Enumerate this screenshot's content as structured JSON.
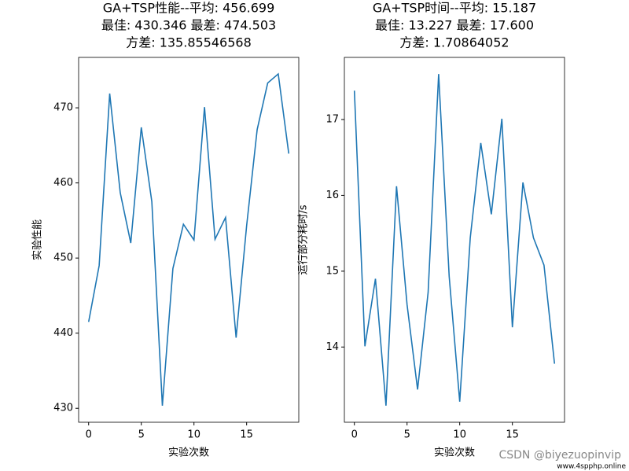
{
  "chart_data": [
    {
      "type": "line",
      "title": [
        "GA+TSP性能--平均: 456.699",
        "最佳: 430.346 最差: 474.503",
        "方差: 135.85546568"
      ],
      "x_label": "实验次数",
      "y_label": "实验性能",
      "x": [
        0,
        1,
        2,
        3,
        4,
        5,
        6,
        7,
        8,
        9,
        10,
        11,
        12,
        13,
        14,
        15,
        16,
        17,
        18,
        19
      ],
      "series": [
        {
          "color": "#1f77b4",
          "values": [
            441.5,
            449.0,
            471.9,
            458.7,
            452.0,
            467.4,
            457.5,
            430.346,
            448.6,
            454.5,
            452.4,
            470.1,
            452.5,
            455.4,
            439.4,
            454.3,
            467.1,
            473.3,
            474.503,
            463.9
          ]
        }
      ],
      "xlim": [
        -0.95,
        19.95
      ],
      "xticks": [
        0,
        5,
        10,
        15
      ],
      "ylim": [
        428.14,
        476.71
      ],
      "yticks": [
        430,
        440,
        450,
        460,
        470
      ]
    },
    {
      "type": "line",
      "title": [
        "GA+TSP时间--平均: 15.187",
        "最佳: 13.227 最差: 17.600",
        "方差: 1.70864052"
      ],
      "x_label": "实验次数",
      "y_label": "运行部分耗时/s",
      "x": [
        0,
        1,
        2,
        3,
        4,
        5,
        6,
        7,
        8,
        9,
        10,
        11,
        12,
        13,
        14,
        15,
        16,
        17,
        18,
        19
      ],
      "series": [
        {
          "color": "#1f77b4",
          "values": [
            17.38,
            14.01,
            14.9,
            13.227,
            16.12,
            14.56,
            13.44,
            14.72,
            17.6,
            14.93,
            13.28,
            15.44,
            16.69,
            15.75,
            17.01,
            14.26,
            16.17,
            15.44,
            15.08,
            13.78
          ]
        }
      ],
      "xlim": [
        -0.95,
        19.95
      ],
      "xticks": [
        0,
        5,
        10,
        15
      ],
      "ylim": [
        13.008,
        17.819
      ],
      "yticks": [
        14,
        15,
        16,
        17
      ]
    }
  ],
  "watermark": "CSDN @biyezuopinvip",
  "site": "www.4spphp.online"
}
